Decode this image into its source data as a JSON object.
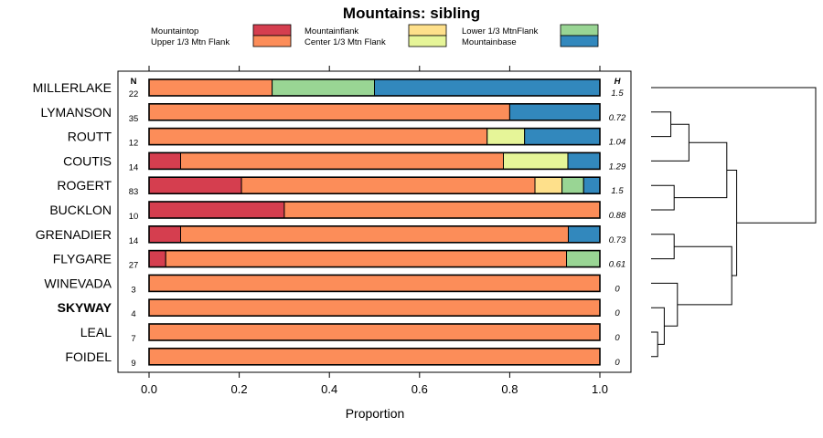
{
  "chart_data": {
    "type": "bar",
    "orientation": "horizontal",
    "stacked": true,
    "title": "Mountains: sibling",
    "xlabel": "Proportion",
    "ylabel": "",
    "xlim": [
      0,
      1
    ],
    "xticks": [
      "0.0",
      "0.2",
      "0.4",
      "0.6",
      "0.8",
      "1.0"
    ],
    "n_header": "N",
    "h_header": "H",
    "legend": [
      {
        "name": "Mountaintop",
        "color": "#d53e4f"
      },
      {
        "name": "Upper 1/3 Mtn Flank",
        "color": "#fc8d59"
      },
      {
        "name": "Mountainflank",
        "color": "#fee08b"
      },
      {
        "name": "Center 1/3 Mtn Flank",
        "color": "#e6f598"
      },
      {
        "name": "Lower 1/3 MtnFlank",
        "color": "#99d594"
      },
      {
        "name": "Mountainbase",
        "color": "#3288bd"
      }
    ],
    "categories": [
      "MILLERLAKE",
      "LYMANSON",
      "ROUTT",
      "COUTIS",
      "ROGERT",
      "BUCKLON",
      "GRENADIER",
      "FLYGARE",
      "WINEVADA",
      "SKYWAY",
      "LEAL",
      "FOIDEL"
    ],
    "bold_category": "SKYWAY",
    "n": [
      "22",
      "35",
      "12",
      "14",
      "83",
      "10",
      "14",
      "27",
      "3",
      "4",
      "7",
      "9"
    ],
    "h": [
      "1.5",
      "0.72",
      "1.04",
      "1.29",
      "1.5",
      "0.88",
      "0.73",
      "0.61",
      "0",
      "0",
      "0",
      "0"
    ],
    "series": [
      {
        "name": "Mountaintop",
        "values": [
          0,
          0,
          0,
          0.07,
          0.205,
          0.3,
          0.07,
          0.037,
          0,
          0,
          0,
          0
        ]
      },
      {
        "name": "Upper 1/3 Mtn Flank",
        "values": [
          0.273,
          0.8,
          0.75,
          0.716,
          0.651,
          0.7,
          0.86,
          0.889,
          1.0,
          1.0,
          1.0,
          1.0
        ]
      },
      {
        "name": "Mountainflank",
        "values": [
          0,
          0,
          0,
          0,
          0.06,
          0,
          0,
          0,
          0,
          0,
          0,
          0
        ]
      },
      {
        "name": "Center 1/3 Mtn Flank",
        "values": [
          0,
          0,
          0.083,
          0.143,
          0,
          0,
          0,
          0,
          0,
          0,
          0,
          0
        ]
      },
      {
        "name": "Lower 1/3 MtnFlank",
        "values": [
          0.227,
          0,
          0,
          0,
          0.048,
          0,
          0,
          0.074,
          0,
          0,
          0,
          0
        ]
      },
      {
        "name": "Mountainbase",
        "values": [
          0.5,
          0.2,
          0.167,
          0.071,
          0.036,
          0,
          0.07,
          0,
          0,
          0,
          0,
          0
        ]
      }
    ],
    "dendrogram": {
      "leaf_order": [
        "MILLERLAKE",
        "LYMANSON",
        "ROUTT",
        "COUTIS",
        "ROGERT",
        "BUCKLON",
        "GRENADIER",
        "FLYGARE",
        "WINEVADA",
        "SKYWAY",
        "LEAL",
        "FOIDEL"
      ],
      "merges": [
        {
          "left": "LEAL",
          "right": "FOIDEL",
          "height": 0.04
        },
        {
          "left": "SKYWAY",
          "right": "LEAL+FOIDEL",
          "height": 0.08
        },
        {
          "left": "WINEVADA",
          "right": "SKYWAY+LEAL+FOIDEL",
          "height": 0.16
        },
        {
          "left": "GRENADIER",
          "right": "FLYGARE",
          "height": 0.14
        },
        {
          "left": "GRENADIER+FLYGARE",
          "right": "WINEVADA+SKYWAY+LEAL+FOIDEL",
          "height": 0.49
        },
        {
          "left": "LYMANSON",
          "right": "ROUTT",
          "height": 0.12
        },
        {
          "left": "LYMANSON+ROUTT",
          "right": "COUTIS",
          "height": 0.23
        },
        {
          "left": "ROGERT",
          "right": "BUCKLON",
          "height": 0.14
        },
        {
          "left": "LYMANSON+ROUTT+COUTIS",
          "right": "ROGERT+BUCKLON",
          "height": 0.46
        },
        {
          "left": "LYMANSON+ROUTT+COUTIS+ROGERT+BUCKLON",
          "right": "GRENADIER+FLYGARE+WINEVADA+SKYWAY+LEAL+FOIDEL",
          "height": 0.52
        },
        {
          "left": "MILLERLAKE",
          "right": "REST",
          "height": 1.0
        }
      ]
    }
  }
}
